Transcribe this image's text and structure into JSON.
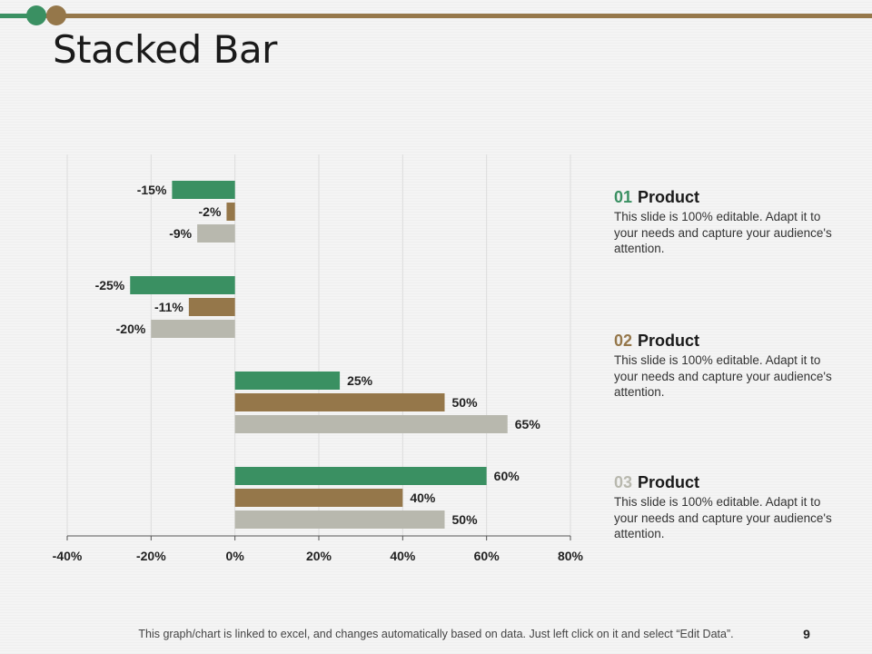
{
  "slide": {
    "title": "Stacked Bar",
    "page_number": "9",
    "footer_note": "This graph/chart is linked to excel, and changes automatically based on data. Just left click on it and select “Edit Data”."
  },
  "colors": {
    "green": "#3a9062",
    "brown": "#95774a",
    "gray": "#b8b8ae",
    "grid": "#dcdcdc",
    "axis": "#555555"
  },
  "legend": [
    {
      "number": "01",
      "label": "Product",
      "color": "#3a9062",
      "description": "This slide is 100% editable. Adapt it to your needs and capture your audience's attention."
    },
    {
      "number": "02",
      "label": "Product",
      "color": "#95774a",
      "description": "This slide is 100% editable. Adapt it to your needs and capture your audience's attention."
    },
    {
      "number": "03",
      "label": "Product",
      "color": "#b8b8ae",
      "description": "This slide is 100% editable. Adapt it to your needs and capture your audience's attention."
    }
  ],
  "chart_data": {
    "type": "bar",
    "orientation": "horizontal",
    "title": "",
    "xlabel": "",
    "ylabel": "",
    "xlim": [
      -40,
      80
    ],
    "x_ticks": [
      -40,
      -20,
      0,
      20,
      40,
      60,
      80
    ],
    "x_tick_labels": [
      "-40%",
      "-20%",
      "0%",
      "20%",
      "40%",
      "60%",
      "80%"
    ],
    "grid": true,
    "legend_position": "right",
    "groups": 4,
    "series": [
      {
        "name": "01 Product",
        "color": "#3a9062",
        "values": [
          -15,
          -25,
          25,
          60
        ],
        "labels": [
          "-15%",
          "-25%",
          "25%",
          "60%"
        ]
      },
      {
        "name": "02 Product",
        "color": "#95774a",
        "values": [
          -2,
          -11,
          50,
          40
        ],
        "labels": [
          "-2%",
          "-11%",
          "50%",
          "40%"
        ]
      },
      {
        "name": "03 Product",
        "color": "#b8b8ae",
        "values": [
          -9,
          -20,
          65,
          50
        ],
        "labels": [
          "-9%",
          "-20%",
          "65%",
          "50%"
        ]
      }
    ]
  }
}
